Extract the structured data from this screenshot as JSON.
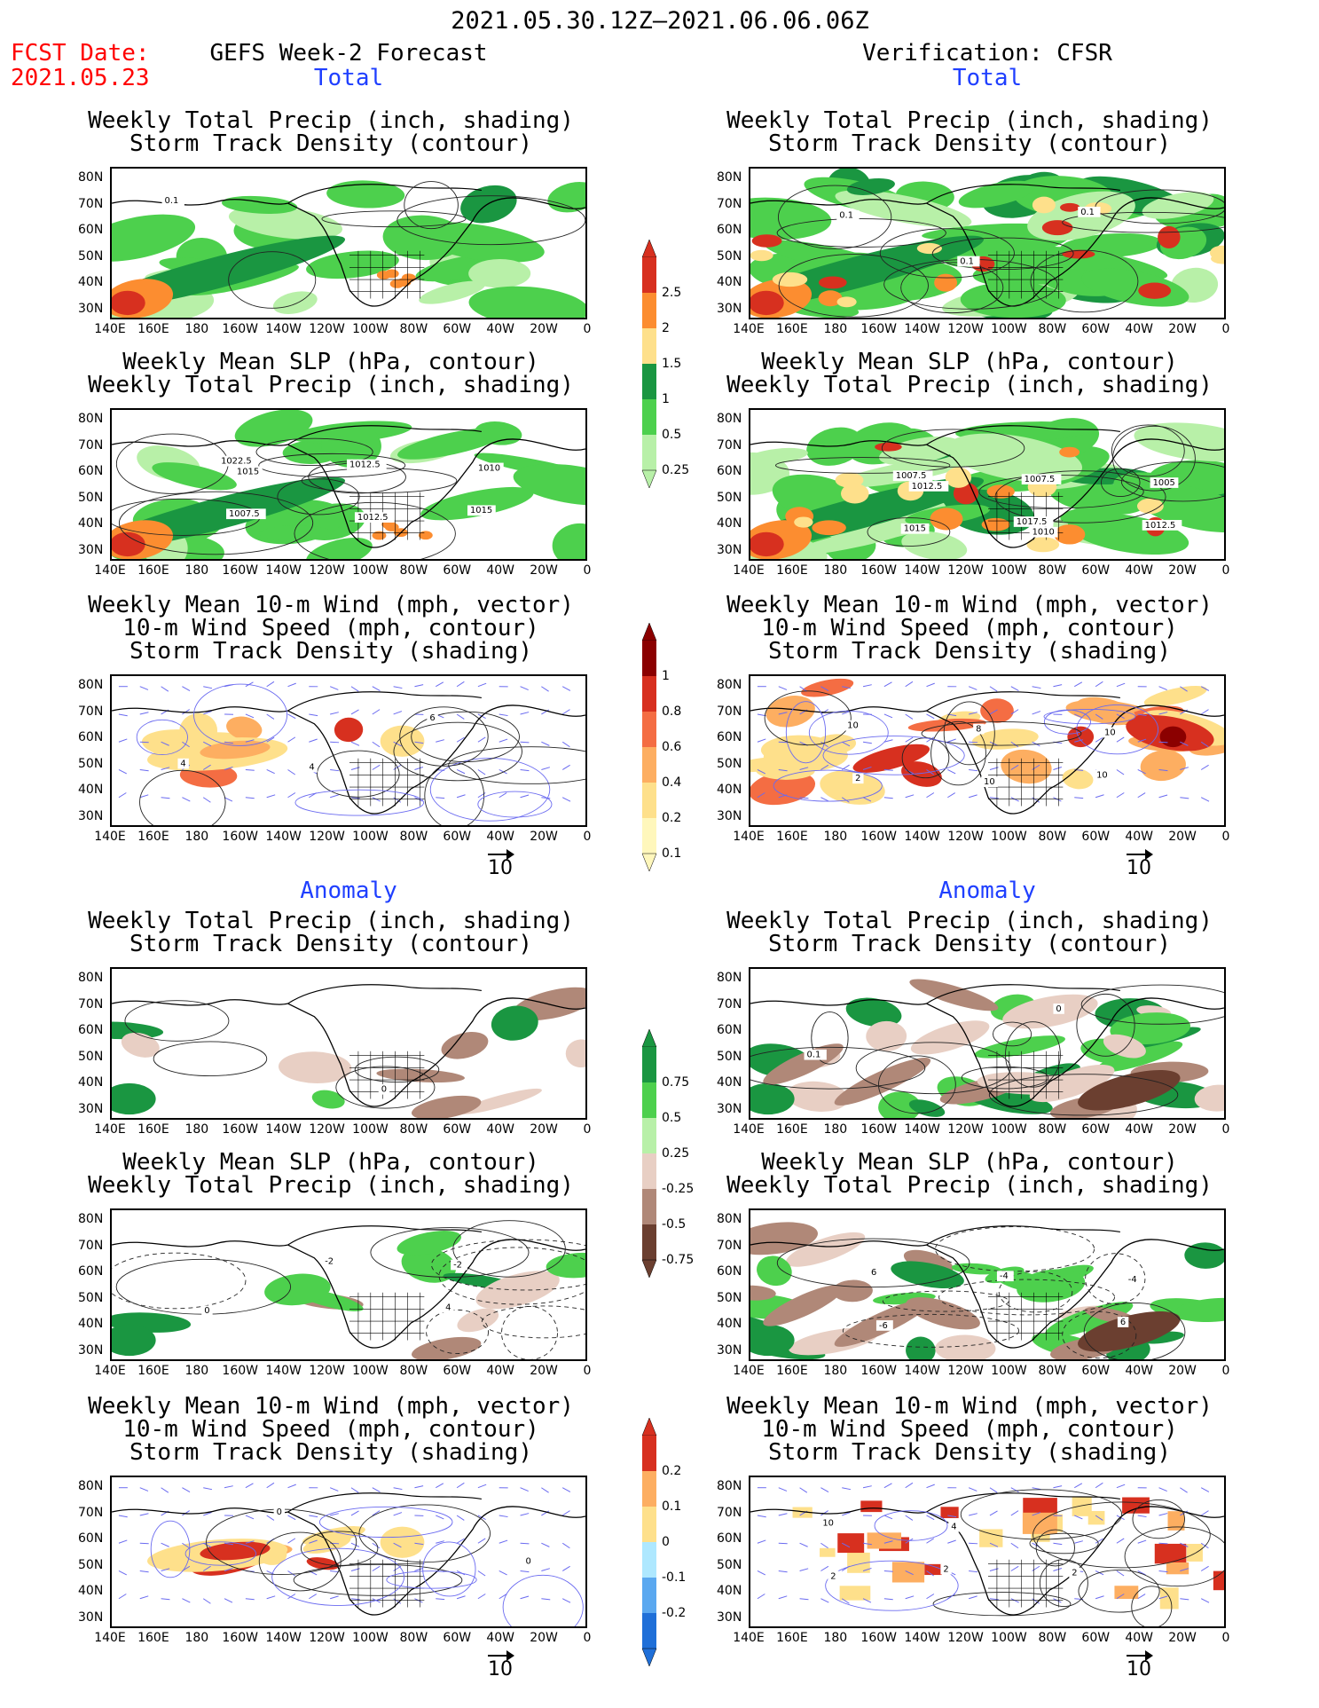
{
  "header": {
    "date_range": "2021.05.30.12Z–2021.06.06.06Z",
    "fcst_label": "FCST Date:",
    "fcst_date": "2021.05.23",
    "left_title": "GEFS Week-2 Forecast",
    "right_title": "Verification: CFSR"
  },
  "sections": {
    "total": "Total",
    "anomaly": "Anomaly"
  },
  "axes": {
    "lat_labels": [
      "80N",
      "70N",
      "60N",
      "50N",
      "40N",
      "30N"
    ],
    "lon_labels": [
      "140E",
      "160E",
      "180",
      "160W",
      "140W",
      "120W",
      "100W",
      "80W",
      "60W",
      "40W",
      "20W",
      "0"
    ]
  },
  "panels": [
    {
      "col": "left",
      "row": 1,
      "line1": "Weekly Total Precip (inch, shading)",
      "line2": "Storm Track Density (contour)",
      "line3": "",
      "contour_labels": [
        "0.1"
      ]
    },
    {
      "col": "right",
      "row": 1,
      "line1": "Weekly Total Precip (inch, shading)",
      "line2": "Storm Track Density (contour)",
      "line3": "",
      "contour_labels": [
        "0.1",
        "0.1",
        "0.1"
      ]
    },
    {
      "col": "left",
      "row": 2,
      "line1": "Weekly Mean SLP (hPa, contour)",
      "line2": "Weekly Total Precip (inch, shading)",
      "line3": "",
      "contour_labels": [
        "1015",
        "1012.5",
        "1010",
        "1007.5",
        "1012.5",
        "1015",
        "1022.5"
      ]
    },
    {
      "col": "right",
      "row": 2,
      "line1": "Weekly Mean SLP (hPa, contour)",
      "line2": "Weekly Total Precip (inch, shading)",
      "line3": "",
      "contour_labels": [
        "1012.5",
        "1010",
        "1005",
        "1015",
        "1007.5",
        "1012.5",
        "1007.5",
        "1017.5"
      ]
    },
    {
      "col": "left",
      "row": 3,
      "line1": "Weekly Mean 10-m Wind (mph, vector)",
      "line2": "10-m Wind Speed (mph, contour)",
      "line3": "Storm Track Density (shading)",
      "contour_labels": [
        "4",
        "6",
        "4"
      ]
    },
    {
      "col": "right",
      "row": 3,
      "line1": "Weekly Mean 10-m Wind (mph, vector)",
      "line2": "10-m Wind Speed (mph, contour)",
      "line3": "Storm Track Density (shading)",
      "contour_labels": [
        "10",
        "10",
        "2",
        "8",
        "10",
        "10"
      ]
    },
    {
      "col": "left",
      "row": 4,
      "line1": "Weekly Total Precip (inch, shading)",
      "line2": "Storm Track Density (contour)",
      "line3": "",
      "contour_labels": [
        "0"
      ]
    },
    {
      "col": "right",
      "row": 4,
      "line1": "Weekly Total Precip (inch, shading)",
      "line2": "Storm Track Density (contour)",
      "line3": "",
      "contour_labels": [
        "0",
        "0.1"
      ]
    },
    {
      "col": "left",
      "row": 5,
      "line1": "Weekly Mean SLP (hPa, contour)",
      "line2": "Weekly Total Precip (inch, shading)",
      "line3": "",
      "contour_labels": [
        "-2",
        "0",
        "-2",
        "4"
      ]
    },
    {
      "col": "right",
      "row": 5,
      "line1": "Weekly Mean SLP (hPa, contour)",
      "line2": "Weekly Total Precip (inch, shading)",
      "line3": "",
      "contour_labels": [
        "-4",
        "-6",
        "-4",
        "6",
        "6"
      ]
    },
    {
      "col": "left",
      "row": 6,
      "line1": "Weekly Mean 10-m Wind (mph, vector)",
      "line2": "10-m Wind Speed (mph, contour)",
      "line3": "Storm Track Density (shading)",
      "contour_labels": [
        "0",
        "0"
      ]
    },
    {
      "col": "right",
      "row": 6,
      "line1": "Weekly Mean 10-m Wind (mph, vector)",
      "line2": "10-m Wind Speed (mph, contour)",
      "line3": "Storm Track Density (shading)",
      "contour_labels": [
        "2",
        "4",
        "2",
        "10",
        "2"
      ]
    }
  ],
  "vector_ref": "10",
  "colorbars": {
    "precip_total": {
      "labels": [
        "2.5",
        "2",
        "1.5",
        "1",
        "0.5",
        "0.25"
      ],
      "colors": [
        "#d7301f",
        "#fc8d30",
        "#fee08b",
        "#1a9641",
        "#4dd04d",
        "#b8f0a8"
      ]
    },
    "storm_total": {
      "labels": [
        "1",
        "0.8",
        "0.6",
        "0.4",
        "0.2",
        "0.1"
      ],
      "colors": [
        "#8b0000",
        "#d7301f",
        "#f46d43",
        "#fdae61",
        "#fee08b",
        "#fff7bc"
      ]
    },
    "precip_anom": {
      "labels": [
        "0.75",
        "0.5",
        "0.25",
        "-0.25",
        "-0.5",
        "-0.75"
      ],
      "colors": [
        "#1a9641",
        "#4dd04d",
        "#b8f0a8",
        "#e8cfc4",
        "#b08878",
        "#6b3f30"
      ]
    },
    "storm_anom": {
      "labels": [
        "0.2",
        "0.1",
        "0",
        "-0.1",
        "-0.2"
      ],
      "colors": [
        "#d7301f",
        "#fdae61",
        "#fee08b",
        "#aee8ff",
        "#5aa8f0",
        "#1f6fd8"
      ]
    }
  },
  "colors": {
    "fcst": "#ff0000",
    "section": "#1f3fff",
    "vectors": "#6a6af0"
  }
}
